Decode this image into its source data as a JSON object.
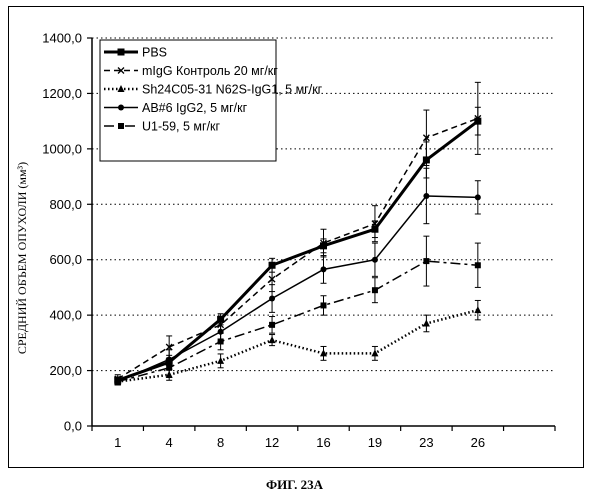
{
  "caption": "ФИГ. 23А",
  "chart_data": {
    "type": "line",
    "title": "",
    "xlabel": "",
    "ylabel": "СРЕДНИЙ ОБЪЕМ ОПУХОЛИ (мм³)",
    "categories": [
      "1",
      "4",
      "8",
      "12",
      "16",
      "19",
      "23",
      "26"
    ],
    "ylim": [
      0,
      1400
    ],
    "yticks": [
      "0,0",
      "200,0",
      "400,0",
      "600,0",
      "800,0",
      "1000,0",
      "1200,0",
      "1400,0"
    ],
    "grid": "horizontal dotted",
    "legend_position": "top-left",
    "series": [
      {
        "name": "PBS",
        "values": [
          165,
          230,
          385,
          580,
          650,
          710,
          960,
          1100
        ],
        "errors": [
          12,
          25,
          20,
          25,
          25,
          30,
          65,
          50
        ],
        "style": "solid",
        "width": 3,
        "marker": "square"
      },
      {
        "name": "mIgG Контроль 20 мг/кг",
        "values": [
          170,
          285,
          365,
          530,
          660,
          730,
          1040,
          1110
        ],
        "errors": [
          15,
          40,
          30,
          45,
          50,
          65,
          100,
          130
        ],
        "style": "dashed",
        "width": 1.5,
        "marker": "x"
      },
      {
        "name": "Sh24C05-31 N62S-IgG1, 5 мг/кг",
        "values": [
          160,
          185,
          235,
          310,
          262,
          262,
          370,
          418
        ],
        "errors": [
          12,
          20,
          25,
          20,
          25,
          25,
          30,
          35
        ],
        "style": "dotted",
        "width": 2.5,
        "marker": "triangle"
      },
      {
        "name": "AB#6 IgG2, 5 мг/кг",
        "values": [
          160,
          240,
          340,
          460,
          565,
          600,
          830,
          825
        ],
        "errors": [
          12,
          35,
          35,
          50,
          50,
          60,
          100,
          60
        ],
        "style": "solid",
        "width": 1.5,
        "marker": "circle"
      },
      {
        "name": "U1-59, 5 мг/кг",
        "values": [
          160,
          210,
          305,
          365,
          435,
          490,
          595,
          580
        ],
        "errors": [
          12,
          35,
          30,
          30,
          35,
          45,
          90,
          80
        ],
        "style": "dashdot",
        "width": 1.5,
        "marker": "square-small"
      }
    ]
  }
}
